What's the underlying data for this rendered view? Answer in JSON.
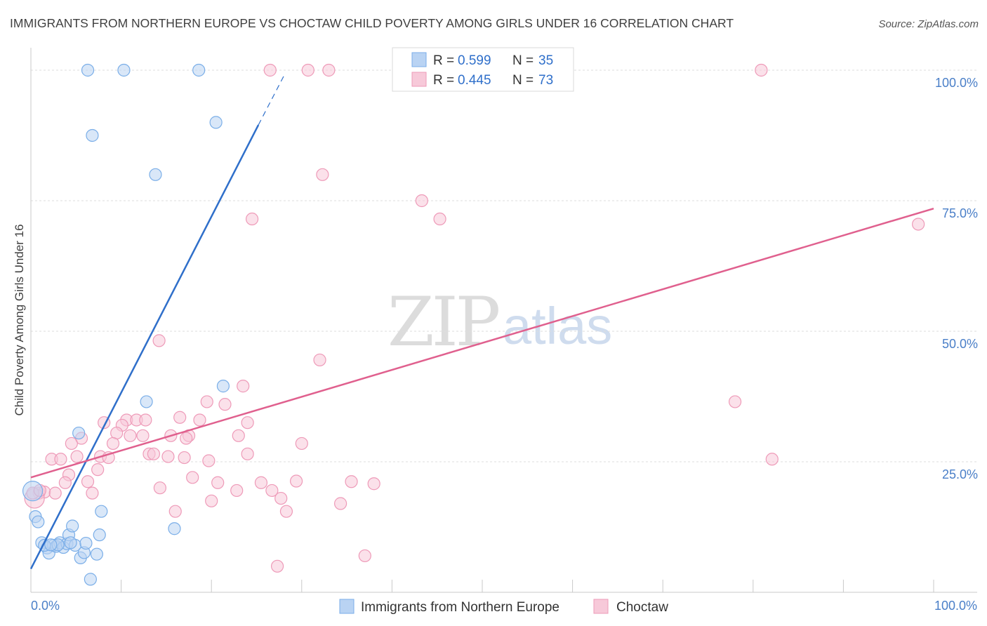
{
  "chart_data": {
    "type": "scatter",
    "title": "IMMIGRANTS FROM NORTHERN EUROPE VS CHOCTAW CHILD POVERTY AMONG GIRLS UNDER 16 CORRELATION CHART",
    "source": "Source: ZipAtlas.com",
    "ylabel": "Child Poverty Among Girls Under 16",
    "xlim": [
      0,
      100
    ],
    "ylim": [
      0,
      100
    ],
    "x_tick_labels": [
      "0.0%",
      "100.0%"
    ],
    "y_ticks": [
      {
        "value": 25,
        "label": "25.0%"
      },
      {
        "value": 50,
        "label": "50.0%"
      },
      {
        "value": 75,
        "label": "75.0%"
      },
      {
        "value": 100,
        "label": "100.0%"
      }
    ],
    "legend": {
      "entries": [
        {
          "r_label": "R =",
          "r_value": "0.599",
          "n_label": "N =",
          "n_value": "35"
        },
        {
          "r_label": "R =",
          "r_value": "0.445",
          "n_label": "N =",
          "n_value": "73"
        }
      ]
    },
    "watermark": {
      "zip": "ZIP",
      "atlas": "atlas"
    },
    "series": [
      {
        "name": "Immigrants from Northern Europe",
        "color": "#7aaee8",
        "fill": "#b9d3f3",
        "line_color": "#2f6fca",
        "trend": {
          "x0": 0,
          "y0": 4.5,
          "x1": 25.2,
          "y1": 89.5,
          "dash_to_x": 28.2,
          "dash_to_y": 99.5
        },
        "points": [
          [
            6.3,
            100
          ],
          [
            10.3,
            100
          ],
          [
            18.6,
            100
          ],
          [
            20.5,
            90
          ],
          [
            6.8,
            87.5
          ],
          [
            13.8,
            80
          ],
          [
            21.3,
            39.5
          ],
          [
            12.8,
            36.5
          ],
          [
            5.3,
            30.5
          ],
          [
            7.8,
            15.5
          ],
          [
            15.9,
            12.2
          ],
          [
            0.2,
            19.4
          ],
          [
            0.5,
            14.5
          ],
          [
            0.8,
            13.5
          ],
          [
            1.2,
            9.5
          ],
          [
            1.8,
            8.5
          ],
          [
            2.0,
            7.5
          ],
          [
            2.5,
            9.0
          ],
          [
            2.8,
            8.8
          ],
          [
            3.2,
            9.5
          ],
          [
            3.6,
            8.6
          ],
          [
            4.0,
            9.3
          ],
          [
            4.2,
            11.0
          ],
          [
            4.6,
            12.7
          ],
          [
            4.9,
            9.0
          ],
          [
            5.5,
            6.6
          ],
          [
            5.9,
            7.6
          ],
          [
            6.1,
            9.4
          ],
          [
            6.6,
            2.5
          ],
          [
            7.3,
            7.3
          ],
          [
            7.6,
            11.0
          ],
          [
            1.5,
            9.0
          ],
          [
            3.0,
            9.1
          ],
          [
            4.4,
            9.5
          ],
          [
            2.2,
            9.1
          ]
        ]
      },
      {
        "name": "Choctaw",
        "color": "#ee9ab8",
        "fill": "#f7c9d9",
        "line_color": "#e0608e",
        "trend": {
          "x0": 0,
          "y0": 22.0,
          "x1": 100,
          "y1": 73.5
        },
        "points": [
          [
            26.5,
            100
          ],
          [
            30.7,
            100
          ],
          [
            33.0,
            100
          ],
          [
            80.9,
            100
          ],
          [
            32.3,
            80
          ],
          [
            43.3,
            75
          ],
          [
            24.5,
            71.5
          ],
          [
            45.3,
            71.5
          ],
          [
            98.3,
            70.5
          ],
          [
            14.2,
            48.2
          ],
          [
            32.0,
            44.5
          ],
          [
            23.5,
            39.5
          ],
          [
            19.5,
            36.5
          ],
          [
            21.5,
            36.0
          ],
          [
            78.0,
            36.5
          ],
          [
            16.5,
            33.5
          ],
          [
            18.7,
            33.0
          ],
          [
            10.6,
            33.0
          ],
          [
            11.7,
            33.0
          ],
          [
            12.7,
            33.0
          ],
          [
            8.1,
            32.5
          ],
          [
            10.1,
            32.0
          ],
          [
            24.0,
            32.5
          ],
          [
            9.5,
            30.5
          ],
          [
            12.4,
            30.0
          ],
          [
            15.5,
            30.0
          ],
          [
            17.5,
            30.0
          ],
          [
            23.0,
            30.0
          ],
          [
            5.6,
            29.5
          ],
          [
            4.5,
            28.5
          ],
          [
            9.1,
            28.5
          ],
          [
            11.0,
            30.0
          ],
          [
            17.2,
            29.5
          ],
          [
            30.0,
            28.5
          ],
          [
            13.1,
            26.5
          ],
          [
            13.6,
            26.5
          ],
          [
            15.2,
            26.0
          ],
          [
            17.0,
            25.8
          ],
          [
            19.7,
            25.2
          ],
          [
            24.0,
            26.5
          ],
          [
            7.7,
            26.0
          ],
          [
            8.6,
            25.8
          ],
          [
            2.3,
            25.5
          ],
          [
            3.3,
            25.5
          ],
          [
            5.1,
            26.0
          ],
          [
            82.1,
            25.5
          ],
          [
            4.2,
            22.5
          ],
          [
            7.4,
            23.5
          ],
          [
            3.8,
            21.0
          ],
          [
            6.3,
            21.2
          ],
          [
            17.9,
            22.0
          ],
          [
            20.7,
            21.0
          ],
          [
            25.5,
            21.0
          ],
          [
            29.4,
            21.3
          ],
          [
            35.5,
            21.2
          ],
          [
            38.0,
            20.8
          ],
          [
            14.3,
            20.0
          ],
          [
            22.8,
            19.5
          ],
          [
            26.7,
            19.5
          ],
          [
            0.9,
            19.0
          ],
          [
            1.5,
            19.2
          ],
          [
            2.7,
            19.0
          ],
          [
            6.8,
            19.0
          ],
          [
            20.0,
            17.5
          ],
          [
            27.7,
            18.0
          ],
          [
            34.3,
            17.0
          ],
          [
            0.4,
            18.0
          ],
          [
            16.0,
            15.5
          ],
          [
            28.3,
            15.5
          ],
          [
            27.3,
            5.0
          ],
          [
            37.0,
            7.0
          ],
          [
            0.2,
            19.0
          ],
          [
            1.0,
            19.5
          ]
        ]
      }
    ]
  }
}
